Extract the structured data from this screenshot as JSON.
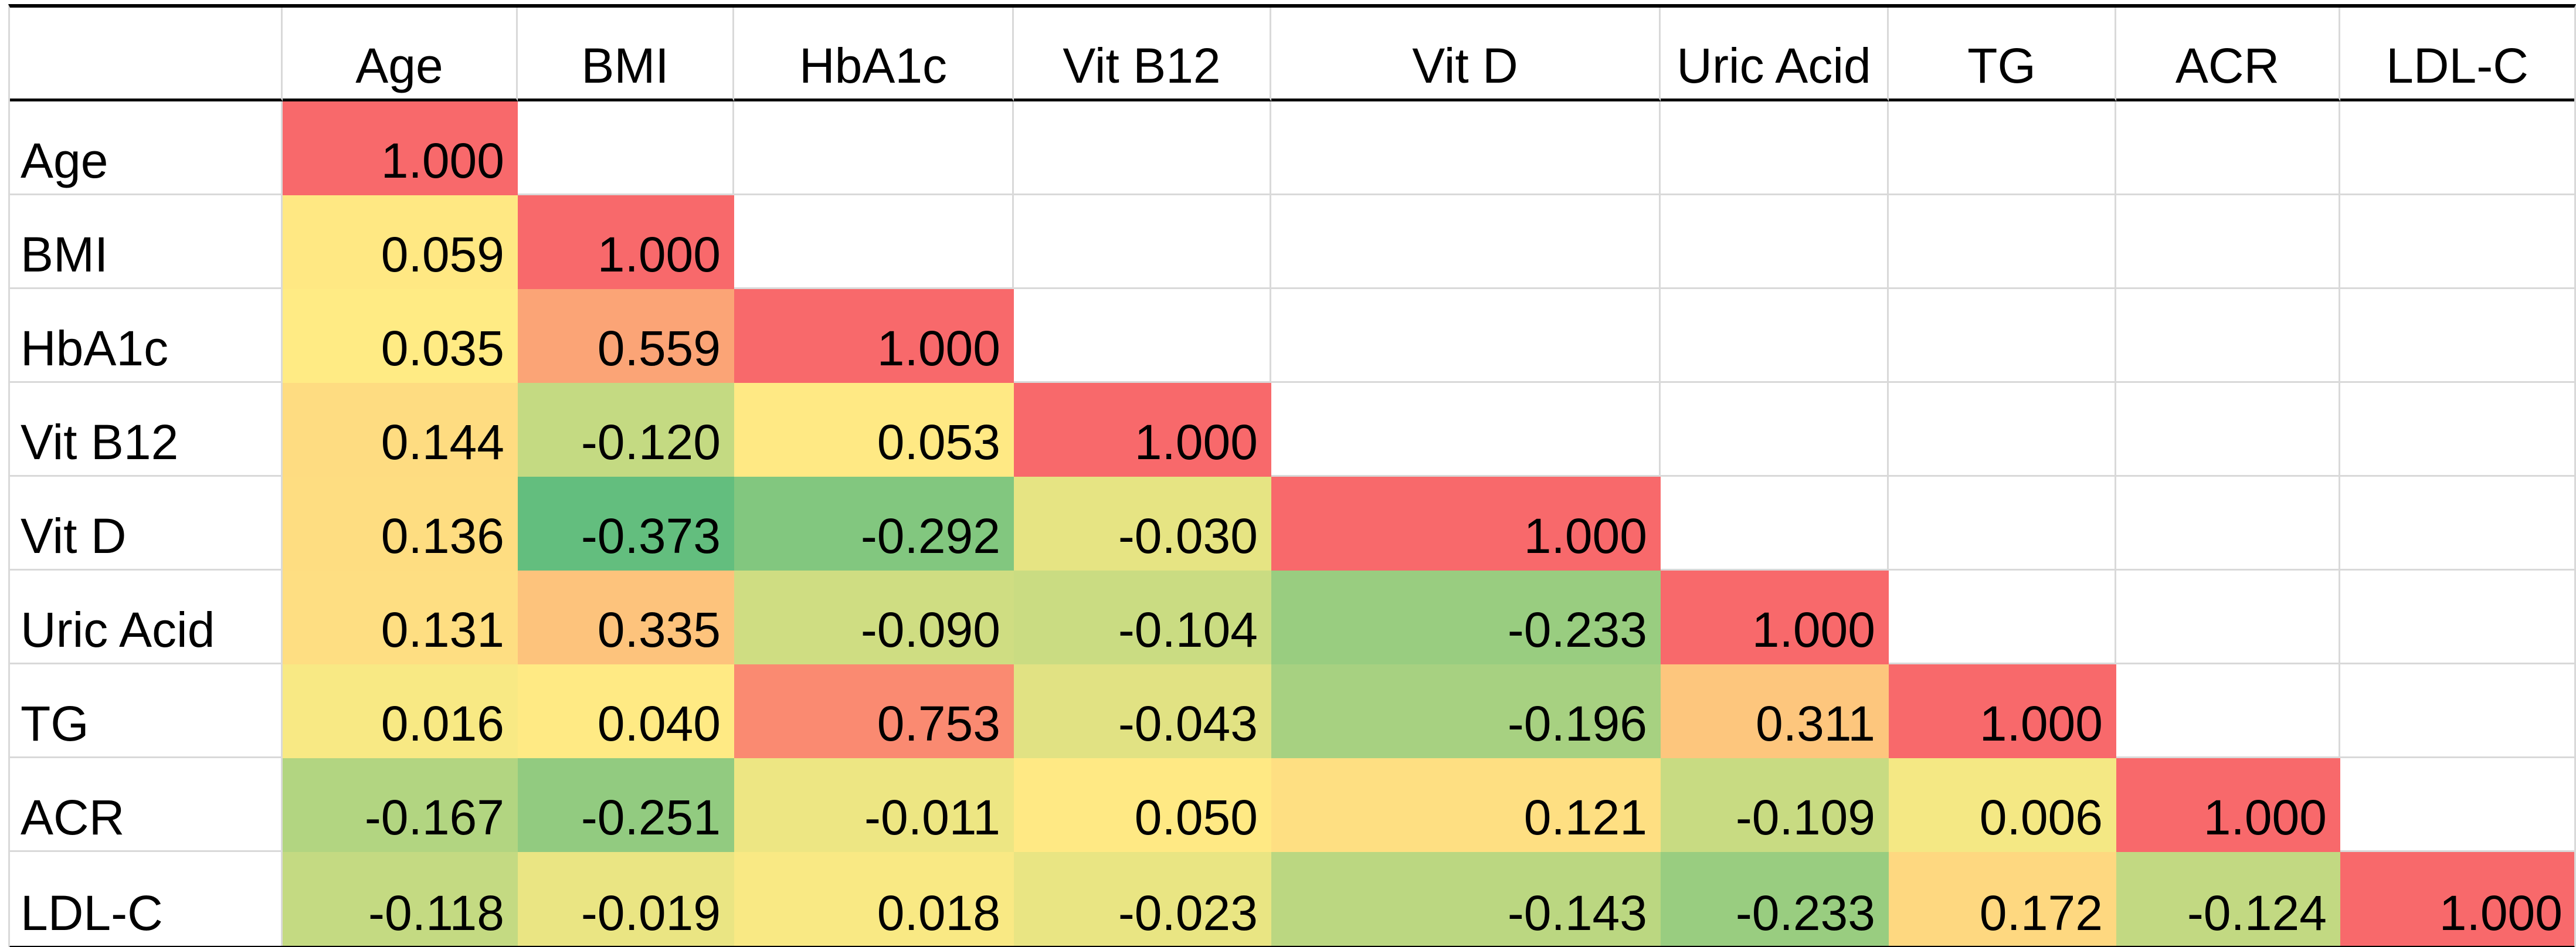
{
  "chart_data": {
    "type": "heatmap",
    "layout": "lower-triangle-correlation-matrix",
    "value_format": "0.000",
    "columns": [
      "Age",
      "BMI",
      "HbA1c",
      "Vit B12",
      "Vit D",
      "Uric Acid",
      "TG",
      "ACR",
      "LDL-C"
    ],
    "rows": [
      {
        "label": "Age",
        "values": [
          1.0
        ],
        "colors": [
          "#F8696B"
        ]
      },
      {
        "label": "BMI",
        "values": [
          0.059,
          1.0
        ],
        "colors": [
          "#FFE883",
          "#F8696B"
        ]
      },
      {
        "label": "HbA1c",
        "values": [
          0.035,
          0.559,
          1.0
        ],
        "colors": [
          "#FFEB84",
          "#FBA476",
          "#F8696B"
        ]
      },
      {
        "label": "Vit B12",
        "values": [
          0.144,
          -0.12,
          0.053,
          1.0
        ],
        "colors": [
          "#FEDC81",
          "#C4DA82",
          "#FFE984",
          "#F8696B"
        ]
      },
      {
        "label": "Vit D",
        "values": [
          0.136,
          -0.373,
          -0.292,
          -0.03,
          1.0
        ],
        "colors": [
          "#FEDD81",
          "#63BE7E",
          "#82C77F",
          "#E6E483",
          "#F8696B"
        ]
      },
      {
        "label": "Uric Acid",
        "values": [
          0.131,
          0.335,
          -0.09,
          -0.104,
          -0.233,
          1.0
        ],
        "colors": [
          "#FEDE82",
          "#FDC37C",
          "#CFDD82",
          "#CADC82",
          "#99CD80",
          "#F8696B"
        ]
      },
      {
        "label": "TG",
        "values": [
          0.016,
          0.04,
          0.753,
          -0.043,
          -0.196,
          0.311,
          1.0
        ],
        "colors": [
          "#F8E984",
          "#FFEA84",
          "#FA8A71",
          "#E1E283",
          "#A7D181",
          "#FDC67D",
          "#F8696B"
        ]
      },
      {
        "label": "ACR",
        "values": [
          -0.167,
          -0.251,
          -0.011,
          0.05,
          0.121,
          -0.109,
          0.006,
          1.0
        ],
        "colors": [
          "#B2D581",
          "#92CB80",
          "#EDE683",
          "#FFE984",
          "#FEDF82",
          "#C8DB82",
          "#F4E884",
          "#F8696B"
        ]
      },
      {
        "label": "LDL-C",
        "values": [
          -0.118,
          -0.019,
          0.018,
          -0.023,
          -0.143,
          -0.233,
          0.172,
          -0.124,
          1.0
        ],
        "colors": [
          "#C4DA82",
          "#EAE583",
          "#F9E984",
          "#E9E583",
          "#BBD781",
          "#99CD80",
          "#FED880",
          "#C2D982",
          "#F8696B"
        ]
      }
    ],
    "colorscale": {
      "min": {
        "value": -0.373,
        "color": "#63BE7E"
      },
      "mid": {
        "value": 0.035,
        "color": "#FFEB84"
      },
      "max": {
        "value": 1.0,
        "color": "#F8696B"
      }
    },
    "gridline_color": "#D9D9D9",
    "border_color": "#000000",
    "text_color": "#000000",
    "empty_cell_color": "#FFFFFF"
  }
}
